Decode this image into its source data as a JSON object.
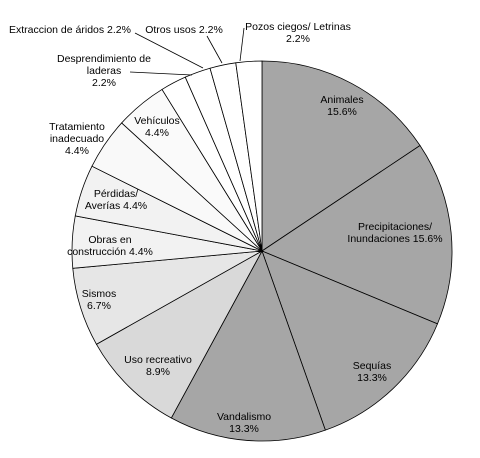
{
  "chart_data": {
    "type": "pie",
    "title": "",
    "start": "12 o'clock",
    "direction": "clockwise",
    "slices": [
      {
        "label_lines": [
          "Animales",
          "15.6%"
        ],
        "category": "Animales",
        "value": 15.6,
        "color": "#a6a6a6"
      },
      {
        "label_lines": [
          "Precipitaciones/",
          "Inundaciones 15.6%"
        ],
        "category": "Precipitaciones/ Inundaciones",
        "value": 15.6,
        "color": "#a6a6a6"
      },
      {
        "label_lines": [
          "Sequías",
          "13.3%"
        ],
        "category": "Sequías",
        "value": 13.3,
        "color": "#a6a6a6"
      },
      {
        "label_lines": [
          "Vandalismo",
          "13.3%"
        ],
        "category": "Vandalismo",
        "value": 13.3,
        "color": "#a6a6a6"
      },
      {
        "label_lines": [
          "Uso recreativo",
          "8.9%"
        ],
        "category": "Uso recreativo",
        "value": 8.9,
        "color": "#d9d9d9"
      },
      {
        "label_lines": [
          "Sismos",
          "6.7%"
        ],
        "category": "Sismos",
        "value": 6.7,
        "color": "#e6e6e6"
      },
      {
        "label_lines": [
          "Obras en",
          "construcción 4.4%"
        ],
        "category": "Obras en construcción",
        "value": 4.4,
        "color": "#f2f2f2"
      },
      {
        "label_lines": [
          "Pérdidas/",
          "Averías 4.4%"
        ],
        "category": "Pérdidas/ Averías",
        "value": 4.4,
        "color": "#f2f2f2"
      },
      {
        "label_lines": [
          "Tratamiento",
          "inadecuado",
          "4.4%"
        ],
        "category": "Tratamiento inadecuado",
        "value": 4.4,
        "color": "#f9f9f9"
      },
      {
        "label_lines": [
          "Vehículos",
          "4.4%"
        ],
        "category": "Vehículos",
        "value": 4.4,
        "color": "#fafafa"
      },
      {
        "label_lines": [
          "Desprendimiento de",
          "laderas",
          "2.2%"
        ],
        "category": "Desprendimiento de laderas",
        "value": 2.2,
        "color": "#ffffff"
      },
      {
        "label_lines": [
          "Extraccion de áridos 2.2%"
        ],
        "category": "Extraccion de áridos",
        "value": 2.2,
        "color": "#ffffff"
      },
      {
        "label_lines": [
          "Otros usos 2.2%"
        ],
        "category": "Otros usos",
        "value": 2.2,
        "color": "#ffffff"
      },
      {
        "label_lines": [
          "Pozos ciegos/ Letrinas",
          "2.2%"
        ],
        "category": "Pozos ciegos/ Letrinas",
        "value": 2.2,
        "color": "#ffffff"
      }
    ]
  }
}
